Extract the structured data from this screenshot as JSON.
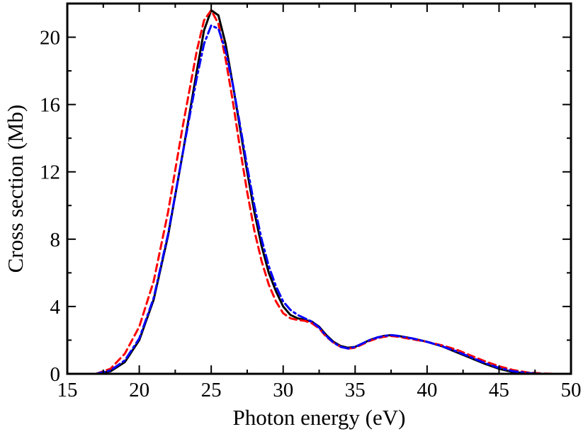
{
  "chart_data": {
    "type": "line",
    "title": "",
    "xlabel": "Photon energy (eV)",
    "ylabel": "Cross section (Mb)",
    "xlim": [
      15,
      50
    ],
    "ylim": [
      0,
      22
    ],
    "x_ticks": [
      "15",
      "20",
      "25",
      "30",
      "35",
      "40",
      "45",
      "50"
    ],
    "y_ticks": [
      "0",
      "4",
      "8",
      "12",
      "16",
      "20"
    ],
    "grid": false,
    "legend": "none",
    "series": [
      {
        "style": "solid",
        "color": "#000000",
        "points": [
          [
            17.0,
            0.0
          ],
          [
            18.0,
            0.15
          ],
          [
            19.0,
            0.7
          ],
          [
            20.0,
            2.0
          ],
          [
            21.0,
            4.4
          ],
          [
            22.0,
            8.2
          ],
          [
            23.0,
            13.0
          ],
          [
            24.0,
            18.0
          ],
          [
            24.5,
            20.4
          ],
          [
            25.0,
            21.6
          ],
          [
            25.5,
            21.3
          ],
          [
            26.0,
            19.6
          ],
          [
            26.5,
            17.2
          ],
          [
            27.0,
            14.6
          ],
          [
            27.5,
            12.0
          ],
          [
            28.0,
            9.6
          ],
          [
            28.5,
            7.6
          ],
          [
            29.0,
            6.0
          ],
          [
            29.5,
            4.9
          ],
          [
            30.0,
            4.0
          ],
          [
            30.5,
            3.5
          ],
          [
            31.0,
            3.3
          ],
          [
            31.5,
            3.2
          ],
          [
            32.0,
            3.1
          ],
          [
            32.5,
            2.8
          ],
          [
            33.0,
            2.3
          ],
          [
            33.5,
            1.9
          ],
          [
            34.0,
            1.65
          ],
          [
            34.5,
            1.55
          ],
          [
            35.0,
            1.6
          ],
          [
            35.5,
            1.8
          ],
          [
            36.0,
            2.0
          ],
          [
            36.5,
            2.15
          ],
          [
            37.0,
            2.25
          ],
          [
            37.5,
            2.3
          ],
          [
            38.0,
            2.25
          ],
          [
            39.0,
            2.1
          ],
          [
            40.0,
            1.9
          ],
          [
            41.0,
            1.65
          ],
          [
            42.0,
            1.3
          ],
          [
            43.0,
            0.95
          ],
          [
            44.0,
            0.6
          ],
          [
            45.0,
            0.3
          ],
          [
            46.0,
            0.1
          ],
          [
            47.0,
            0.03
          ],
          [
            48.0,
            0.0
          ]
        ]
      },
      {
        "style": "dashed",
        "color": "#ff0000",
        "points": [
          [
            17.0,
            0.0
          ],
          [
            18.0,
            0.3
          ],
          [
            19.0,
            1.2
          ],
          [
            20.0,
            2.8
          ],
          [
            21.0,
            5.5
          ],
          [
            22.0,
            9.6
          ],
          [
            23.0,
            14.6
          ],
          [
            24.0,
            19.2
          ],
          [
            24.5,
            21.0
          ],
          [
            25.0,
            21.6
          ],
          [
            25.5,
            20.8
          ],
          [
            26.0,
            18.7
          ],
          [
            26.5,
            16.2
          ],
          [
            27.0,
            13.4
          ],
          [
            27.5,
            10.8
          ],
          [
            28.0,
            8.5
          ],
          [
            28.5,
            6.7
          ],
          [
            29.0,
            5.3
          ],
          [
            29.5,
            4.3
          ],
          [
            30.0,
            3.6
          ],
          [
            30.5,
            3.3
          ],
          [
            31.0,
            3.2
          ],
          [
            31.5,
            3.15
          ],
          [
            32.0,
            3.0
          ],
          [
            32.5,
            2.7
          ],
          [
            33.0,
            2.2
          ],
          [
            33.5,
            1.85
          ],
          [
            34.0,
            1.6
          ],
          [
            34.5,
            1.5
          ],
          [
            35.0,
            1.55
          ],
          [
            35.5,
            1.75
          ],
          [
            36.0,
            1.95
          ],
          [
            36.5,
            2.1
          ],
          [
            37.0,
            2.2
          ],
          [
            37.5,
            2.25
          ],
          [
            38.0,
            2.2
          ],
          [
            39.0,
            2.05
          ],
          [
            40.0,
            1.9
          ],
          [
            41.0,
            1.7
          ],
          [
            42.0,
            1.45
          ],
          [
            43.0,
            1.1
          ],
          [
            44.0,
            0.75
          ],
          [
            45.0,
            0.45
          ],
          [
            46.0,
            0.22
          ],
          [
            47.0,
            0.08
          ],
          [
            48.0,
            0.02
          ],
          [
            49.0,
            0.0
          ]
        ]
      },
      {
        "style": "dash-dot",
        "color": "#0000ff",
        "points": [
          [
            17.0,
            0.0
          ],
          [
            18.0,
            0.2
          ],
          [
            19.0,
            0.8
          ],
          [
            20.0,
            2.1
          ],
          [
            21.0,
            4.5
          ],
          [
            22.0,
            8.3
          ],
          [
            23.0,
            13.0
          ],
          [
            24.0,
            17.6
          ],
          [
            24.5,
            19.6
          ],
          [
            25.0,
            20.7
          ],
          [
            25.5,
            20.5
          ],
          [
            26.0,
            19.2
          ],
          [
            26.5,
            17.2
          ],
          [
            27.0,
            14.8
          ],
          [
            27.5,
            12.3
          ],
          [
            28.0,
            10.0
          ],
          [
            28.5,
            8.0
          ],
          [
            29.0,
            6.4
          ],
          [
            29.5,
            5.2
          ],
          [
            30.0,
            4.3
          ],
          [
            30.5,
            3.8
          ],
          [
            31.0,
            3.5
          ],
          [
            31.5,
            3.3
          ],
          [
            32.0,
            3.1
          ],
          [
            32.5,
            2.75
          ],
          [
            33.0,
            2.25
          ],
          [
            33.5,
            1.85
          ],
          [
            34.0,
            1.6
          ],
          [
            34.5,
            1.5
          ],
          [
            35.0,
            1.6
          ],
          [
            35.5,
            1.8
          ],
          [
            36.0,
            2.0
          ],
          [
            36.5,
            2.15
          ],
          [
            37.0,
            2.25
          ],
          [
            37.5,
            2.3
          ],
          [
            38.0,
            2.25
          ],
          [
            39.0,
            2.1
          ],
          [
            40.0,
            1.9
          ],
          [
            41.0,
            1.65
          ],
          [
            42.0,
            1.35
          ],
          [
            43.0,
            1.0
          ],
          [
            44.0,
            0.65
          ],
          [
            45.0,
            0.35
          ],
          [
            46.0,
            0.15
          ],
          [
            47.0,
            0.05
          ],
          [
            48.0,
            0.0
          ]
        ]
      }
    ]
  }
}
